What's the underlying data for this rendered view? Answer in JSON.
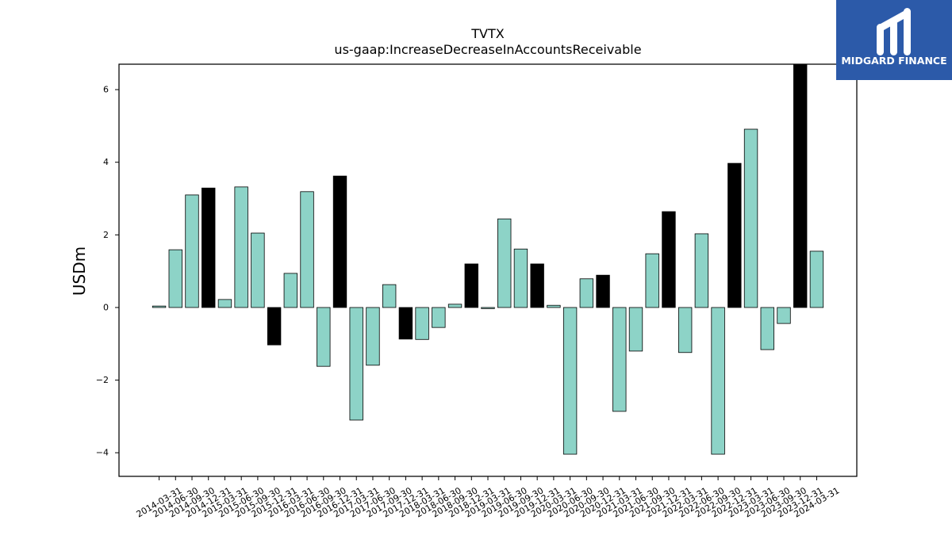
{
  "logo": {
    "text": "MIDGARD FINANCE",
    "background": "#2c5aa9",
    "icon": "midgard-monogram-icon"
  },
  "chart_data": {
    "type": "bar",
    "title": "TVTX",
    "subtitle": "us-gaap:IncreaseDecreaseInAccountsReceivable",
    "ylabel": "USDm",
    "ylim": [
      -4.65,
      6.7
    ],
    "yticks": [
      -4,
      -2,
      0,
      2,
      4,
      6
    ],
    "ytick_labels": [
      "−4",
      "−2",
      "0",
      "2",
      "4",
      "6"
    ],
    "grid": false,
    "edge_color": "#000000",
    "categories": [
      "2014-03-31",
      "2014-06-30",
      "2014-09-30",
      "2014-12-31",
      "2015-03-31",
      "2015-06-30",
      "2015-09-30",
      "2015-12-31",
      "2016-03-31",
      "2016-06-30",
      "2016-09-30",
      "2016-12-31",
      "2017-03-31",
      "2017-06-30",
      "2017-09-30",
      "2017-12-31",
      "2018-03-31",
      "2018-06-30",
      "2018-09-30",
      "2018-12-31",
      "2019-03-31",
      "2019-06-30",
      "2019-09-30",
      "2019-12-31",
      "2020-03-31",
      "2020-06-30",
      "2020-09-30",
      "2020-12-31",
      "2021-03-31",
      "2021-06-30",
      "2021-09-30",
      "2021-12-31",
      "2022-03-31",
      "2022-06-30",
      "2022-09-30",
      "2022-12-31",
      "2023-03-31",
      "2023-06-30",
      "2023-09-30",
      "2023-12-31",
      "2024-03-31"
    ],
    "values": [
      0.04,
      1.59,
      3.1,
      3.29,
      0.22,
      3.32,
      2.05,
      -1.03,
      0.94,
      3.19,
      -1.62,
      3.62,
      -3.1,
      -1.59,
      0.63,
      -0.87,
      -0.88,
      -0.55,
      0.09,
      1.2,
      -0.03,
      2.44,
      1.61,
      1.2,
      0.06,
      -4.04,
      0.79,
      0.89,
      -2.86,
      -1.2,
      1.48,
      2.64,
      -1.24,
      2.03,
      -4.04,
      3.97,
      4.91,
      -1.16,
      -0.44,
      6.7,
      1.55
    ],
    "colors": [
      "#8dd3c7",
      "#8dd3c7",
      "#8dd3c7",
      "#000000",
      "#8dd3c7",
      "#8dd3c7",
      "#8dd3c7",
      "#000000",
      "#8dd3c7",
      "#8dd3c7",
      "#8dd3c7",
      "#000000",
      "#8dd3c7",
      "#8dd3c7",
      "#8dd3c7",
      "#000000",
      "#8dd3c7",
      "#8dd3c7",
      "#8dd3c7",
      "#000000",
      "#8dd3c7",
      "#8dd3c7",
      "#8dd3c7",
      "#000000",
      "#8dd3c7",
      "#8dd3c7",
      "#8dd3c7",
      "#000000",
      "#8dd3c7",
      "#8dd3c7",
      "#8dd3c7",
      "#000000",
      "#8dd3c7",
      "#8dd3c7",
      "#8dd3c7",
      "#000000",
      "#8dd3c7",
      "#8dd3c7",
      "#8dd3c7",
      "#000000",
      "#8dd3c7"
    ]
  }
}
